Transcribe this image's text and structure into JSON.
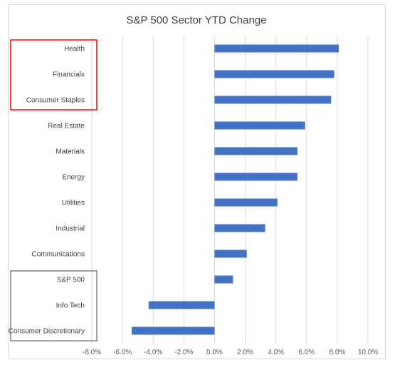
{
  "chart_data": {
    "type": "bar",
    "orientation": "horizontal",
    "title": "S&P 500 Sector YTD Change",
    "categories": [
      "Health",
      "Financials",
      "Consumer Staples",
      "Real Estate",
      "Materials",
      "Energy",
      "Utilities",
      "Industrial",
      "Communications",
      "S&P 500",
      "Info Tech",
      "Consumer Discretionary"
    ],
    "values": [
      8.1,
      7.8,
      7.6,
      5.9,
      5.4,
      5.4,
      4.1,
      3.3,
      2.1,
      1.2,
      -4.3,
      -5.4
    ],
    "xlim": [
      -8.0,
      10.0
    ],
    "x_ticks": [
      "-8.0%",
      "-6.0%",
      "-4.0%",
      "-2.0%",
      "0.0%",
      "2.0%",
      "4.0%",
      "6.0%",
      "8.0%",
      "10.0%"
    ],
    "grid": true,
    "bar_color": "#4472c4",
    "highlight_groups": [
      {
        "categories": [
          "Health",
          "Financials",
          "Consumer Staples"
        ],
        "color": "#ff0000"
      },
      {
        "categories": [
          "S&P 500",
          "Info Tech",
          "Consumer Discretionary"
        ],
        "color": "#808080"
      }
    ]
  }
}
